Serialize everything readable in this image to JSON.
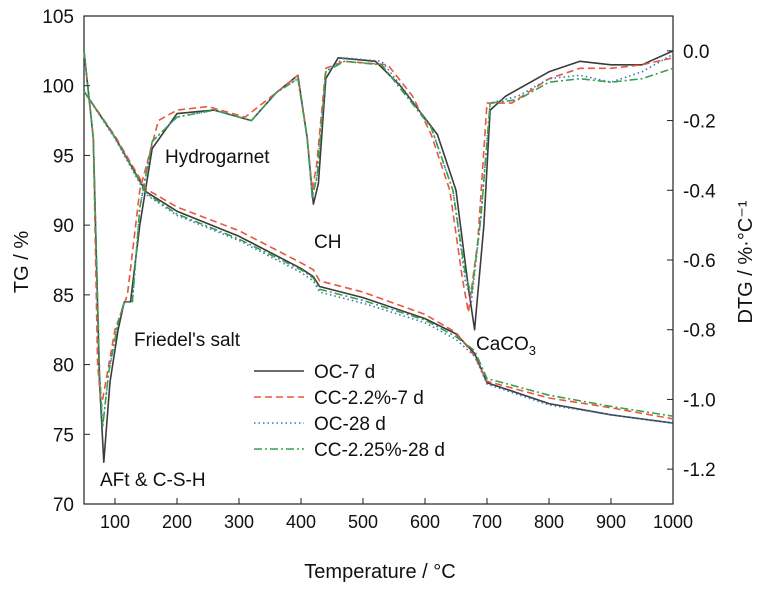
{
  "chart_data": {
    "type": "line",
    "xlabel": "Temperature / °C",
    "ylabel_left": "TG / %",
    "ylabel_right": "DTG / %·°C⁻¹",
    "xlim": [
      50,
      1000
    ],
    "ylim_left": [
      70,
      105
    ],
    "ylim_right": [
      -1.3,
      0.1
    ],
    "x_ticks": [
      "100",
      "200",
      "300",
      "400",
      "500",
      "600",
      "700",
      "800",
      "900",
      "1000"
    ],
    "y_left_ticks": [
      "70",
      "75",
      "80",
      "85",
      "90",
      "95",
      "100",
      "105"
    ],
    "y_right_ticks": [
      "0.0",
      "-0.2",
      "-0.4",
      "-0.6",
      "-0.8",
      "-1.0",
      "-1.2"
    ],
    "legend": {
      "placement": "bottom-center"
    },
    "annotations": {
      "aft": "AFt & C-S-H",
      "friedel": "Friedel's salt",
      "hydrogarnet": "Hydrogarnet",
      "ch": "CH",
      "caco3_main": "CaCO",
      "caco3_sub": "3"
    },
    "series": [
      {
        "name": "OC-7 d",
        "color": "#3c3c3c",
        "dash": "solid",
        "tg": [
          [
            50,
            99.6
          ],
          [
            100,
            96.3
          ],
          [
            150,
            92.4
          ],
          [
            200,
            91.0
          ],
          [
            300,
            89.2
          ],
          [
            400,
            86.9
          ],
          [
            420,
            86.3
          ],
          [
            430,
            85.6
          ],
          [
            500,
            84.8
          ],
          [
            600,
            83.3
          ],
          [
            650,
            82.2
          ],
          [
            680,
            80.8
          ],
          [
            700,
            78.7
          ],
          [
            800,
            77.2
          ],
          [
            900,
            76.4
          ],
          [
            1000,
            75.8
          ]
        ],
        "dtg": [
          [
            50,
            0.0
          ],
          [
            65,
            -0.25
          ],
          [
            75,
            -0.95
          ],
          [
            82,
            -1.18
          ],
          [
            92,
            -0.95
          ],
          [
            105,
            -0.8
          ],
          [
            115,
            -0.72
          ],
          [
            125,
            -0.72
          ],
          [
            140,
            -0.5
          ],
          [
            160,
            -0.28
          ],
          [
            200,
            -0.18
          ],
          [
            260,
            -0.17
          ],
          [
            320,
            -0.2
          ],
          [
            360,
            -0.12
          ],
          [
            395,
            -0.07
          ],
          [
            410,
            -0.25
          ],
          [
            420,
            -0.44
          ],
          [
            428,
            -0.38
          ],
          [
            440,
            -0.08
          ],
          [
            460,
            -0.02
          ],
          [
            520,
            -0.03
          ],
          [
            560,
            -0.1
          ],
          [
            620,
            -0.24
          ],
          [
            650,
            -0.4
          ],
          [
            670,
            -0.68
          ],
          [
            680,
            -0.8
          ],
          [
            695,
            -0.5
          ],
          [
            705,
            -0.17
          ],
          [
            730,
            -0.13
          ],
          [
            800,
            -0.06
          ],
          [
            850,
            -0.03
          ],
          [
            900,
            -0.04
          ],
          [
            950,
            -0.04
          ],
          [
            1000,
            0.0
          ]
        ]
      },
      {
        "name": "CC-2.2%-7 d",
        "color": "#e8573e",
        "dash": "dashed",
        "tg": [
          [
            50,
            99.6
          ],
          [
            100,
            96.4
          ],
          [
            150,
            92.6
          ],
          [
            200,
            91.3
          ],
          [
            300,
            89.6
          ],
          [
            400,
            87.3
          ],
          [
            420,
            86.8
          ],
          [
            430,
            86.0
          ],
          [
            500,
            85.2
          ],
          [
            600,
            83.6
          ],
          [
            650,
            82.3
          ],
          [
            680,
            80.6
          ],
          [
            700,
            78.8
          ],
          [
            800,
            77.6
          ],
          [
            900,
            76.9
          ],
          [
            1000,
            76.1
          ]
        ],
        "dtg": [
          [
            50,
            0.0
          ],
          [
            65,
            -0.25
          ],
          [
            72,
            -0.9
          ],
          [
            78,
            -1.02
          ],
          [
            88,
            -0.92
          ],
          [
            100,
            -0.8
          ],
          [
            110,
            -0.75
          ],
          [
            120,
            -0.7
          ],
          [
            140,
            -0.4
          ],
          [
            170,
            -0.2
          ],
          [
            200,
            -0.17
          ],
          [
            250,
            -0.16
          ],
          [
            310,
            -0.19
          ],
          [
            360,
            -0.12
          ],
          [
            395,
            -0.07
          ],
          [
            410,
            -0.25
          ],
          [
            418,
            -0.4
          ],
          [
            425,
            -0.33
          ],
          [
            440,
            -0.05
          ],
          [
            470,
            -0.03
          ],
          [
            540,
            -0.04
          ],
          [
            580,
            -0.13
          ],
          [
            610,
            -0.24
          ],
          [
            640,
            -0.4
          ],
          [
            660,
            -0.65
          ],
          [
            670,
            -0.75
          ],
          [
            685,
            -0.55
          ],
          [
            700,
            -0.15
          ],
          [
            740,
            -0.15
          ],
          [
            800,
            -0.08
          ],
          [
            850,
            -0.05
          ],
          [
            900,
            -0.05
          ],
          [
            950,
            -0.04
          ],
          [
            1000,
            -0.02
          ]
        ]
      },
      {
        "name": "OC-28 d",
        "color": "#3878c0",
        "dash": "dotted",
        "tg": [
          [
            50,
            99.6
          ],
          [
            100,
            96.2
          ],
          [
            150,
            92.2
          ],
          [
            200,
            90.7
          ],
          [
            300,
            88.9
          ],
          [
            400,
            86.6
          ],
          [
            420,
            86.0
          ],
          [
            430,
            85.2
          ],
          [
            500,
            84.4
          ],
          [
            600,
            83.0
          ],
          [
            650,
            81.8
          ],
          [
            680,
            80.6
          ],
          [
            700,
            78.6
          ],
          [
            800,
            77.1
          ],
          [
            900,
            76.4
          ],
          [
            1000,
            75.8
          ]
        ],
        "dtg": [
          [
            50,
            0.0
          ],
          [
            65,
            -0.25
          ],
          [
            75,
            -0.92
          ],
          [
            80,
            -1.08
          ],
          [
            90,
            -0.92
          ],
          [
            105,
            -0.78
          ],
          [
            115,
            -0.72
          ],
          [
            128,
            -0.72
          ],
          [
            140,
            -0.45
          ],
          [
            160,
            -0.26
          ],
          [
            200,
            -0.19
          ],
          [
            260,
            -0.17
          ],
          [
            320,
            -0.2
          ],
          [
            360,
            -0.12
          ],
          [
            395,
            -0.08
          ],
          [
            410,
            -0.25
          ],
          [
            418,
            -0.42
          ],
          [
            426,
            -0.36
          ],
          [
            440,
            -0.06
          ],
          [
            470,
            -0.02
          ],
          [
            530,
            -0.03
          ],
          [
            570,
            -0.12
          ],
          [
            610,
            -0.22
          ],
          [
            645,
            -0.4
          ],
          [
            665,
            -0.66
          ],
          [
            675,
            -0.72
          ],
          [
            690,
            -0.48
          ],
          [
            705,
            -0.15
          ],
          [
            750,
            -0.13
          ],
          [
            800,
            -0.08
          ],
          [
            850,
            -0.07
          ],
          [
            900,
            -0.09
          ],
          [
            950,
            -0.06
          ],
          [
            1000,
            -0.01
          ]
        ]
      },
      {
        "name": "CC-2.25%-28 d",
        "color": "#3aa04a",
        "dash": "dashdot",
        "tg": [
          [
            50,
            99.6
          ],
          [
            100,
            96.3
          ],
          [
            150,
            92.3
          ],
          [
            200,
            90.8
          ],
          [
            300,
            89.0
          ],
          [
            400,
            86.8
          ],
          [
            420,
            86.2
          ],
          [
            430,
            85.4
          ],
          [
            500,
            84.6
          ],
          [
            600,
            83.2
          ],
          [
            650,
            82.0
          ],
          [
            680,
            81.0
          ],
          [
            700,
            79.0
          ],
          [
            800,
            77.8
          ],
          [
            900,
            77.0
          ],
          [
            1000,
            76.3
          ]
        ],
        "dtg": [
          [
            50,
            0.0
          ],
          [
            65,
            -0.25
          ],
          [
            75,
            -0.92
          ],
          [
            80,
            -1.08
          ],
          [
            90,
            -0.92
          ],
          [
            105,
            -0.78
          ],
          [
            115,
            -0.72
          ],
          [
            128,
            -0.72
          ],
          [
            140,
            -0.45
          ],
          [
            160,
            -0.26
          ],
          [
            200,
            -0.19
          ],
          [
            260,
            -0.17
          ],
          [
            320,
            -0.2
          ],
          [
            360,
            -0.12
          ],
          [
            395,
            -0.08
          ],
          [
            410,
            -0.25
          ],
          [
            418,
            -0.42
          ],
          [
            426,
            -0.36
          ],
          [
            440,
            -0.06
          ],
          [
            470,
            -0.03
          ],
          [
            530,
            -0.04
          ],
          [
            570,
            -0.13
          ],
          [
            610,
            -0.22
          ],
          [
            645,
            -0.4
          ],
          [
            665,
            -0.64
          ],
          [
            675,
            -0.7
          ],
          [
            690,
            -0.48
          ],
          [
            705,
            -0.15
          ],
          [
            750,
            -0.14
          ],
          [
            800,
            -0.09
          ],
          [
            850,
            -0.08
          ],
          [
            900,
            -0.09
          ],
          [
            950,
            -0.08
          ],
          [
            1000,
            -0.05
          ]
        ]
      }
    ]
  }
}
